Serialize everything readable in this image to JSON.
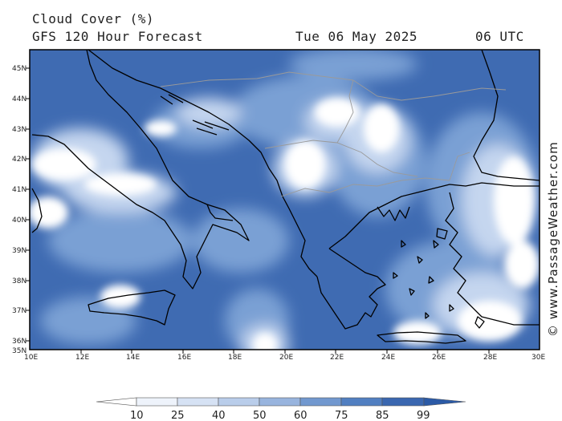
{
  "header": {
    "title": "Cloud Cover (%)",
    "subtitle": "GFS 120 Hour Forecast",
    "valid_date": "Tue 06 May 2025",
    "valid_time": "06 UTC"
  },
  "map": {
    "lat_labels": [
      "45N",
      "44N",
      "43N",
      "42N",
      "41N",
      "40N",
      "39N",
      "38N",
      "37N",
      "36N",
      "35N"
    ],
    "lon_labels": [
      "10E",
      "12E",
      "14E",
      "16E",
      "18E",
      "20E",
      "22E",
      "24E",
      "26E",
      "28E",
      "30E"
    ],
    "lat_range": [
      35,
      45.6
    ],
    "lon_range": [
      10,
      30
    ]
  },
  "colorbar": {
    "ticks": [
      "10",
      "25",
      "40",
      "50",
      "60",
      "75",
      "85",
      "99"
    ],
    "colors": [
      "#ffffff",
      "#eef3fb",
      "#d6e2f4",
      "#b9cdea",
      "#98b4de",
      "#7198cf",
      "#517fc1",
      "#3a67b0",
      "#2b5aa6"
    ]
  },
  "watermark": "© www.PassageWeather.com",
  "palette": {
    "sea_dark": "#3f6bb2",
    "mid": "#7aa0d4",
    "light": "#c5d6ef",
    "clear": "#ffffff",
    "coast": "#000000",
    "border": "#9a9a9a"
  }
}
